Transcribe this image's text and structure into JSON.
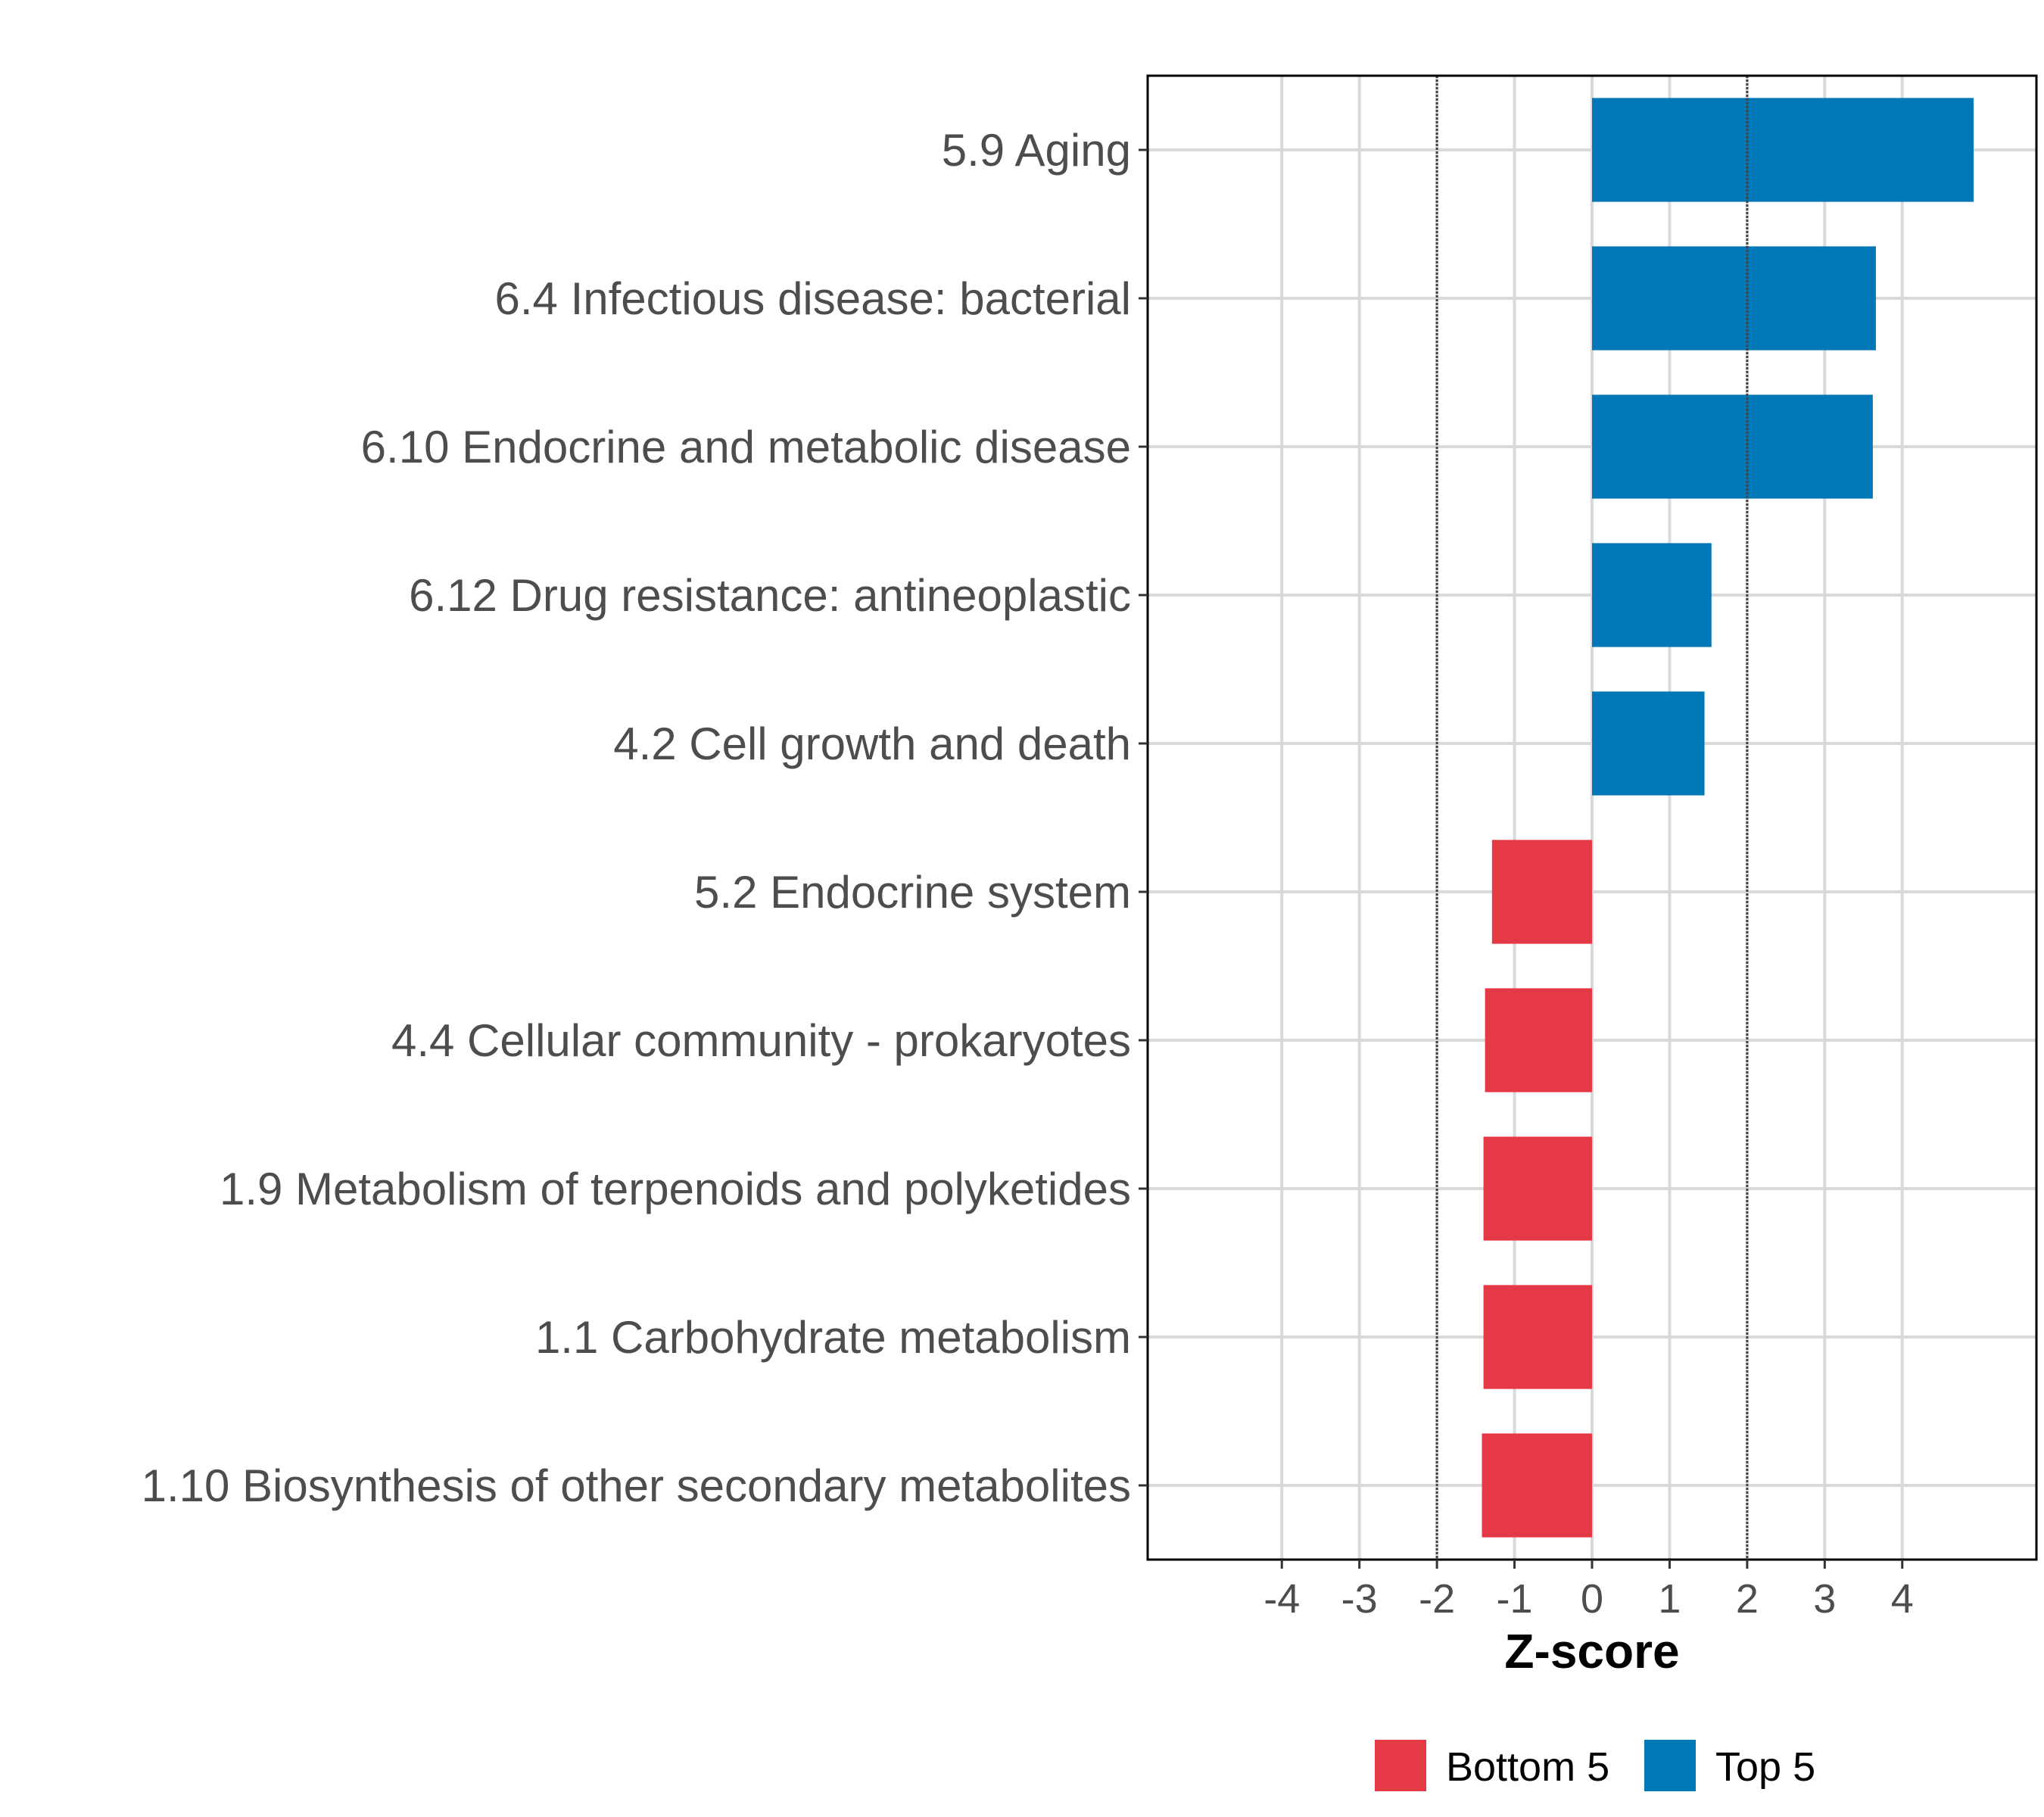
{
  "chart_data": {
    "type": "bar",
    "orientation": "horizontal",
    "xlabel": "Z-score",
    "ylabel": "",
    "xlim": [
      -5.73,
      5.73
    ],
    "xticks": [
      -4,
      -3,
      -2,
      -1,
      0,
      1,
      2,
      3,
      4
    ],
    "xtick_labels": [
      "-4",
      "-3",
      "-2",
      "-1",
      "0",
      "1",
      "2",
      "3",
      "4"
    ],
    "reference_lines": [
      -2,
      2
    ],
    "grid": true,
    "legend_position": "bottom",
    "legend": [
      {
        "name": "Bottom 5",
        "color": "#E63946"
      },
      {
        "name": "Top 5",
        "color": "#0077B6"
      }
    ],
    "categories": [
      "5.9 Aging",
      "6.4 Infectious disease: bacterial",
      "6.10 Endocrine and metabolic disease",
      "6.12 Drug resistance: antineoplastic",
      "4.2 Cell growth and death",
      "5.2 Endocrine system",
      "4.4 Cellular community - prokaryotes",
      "1.9 Metabolism of terpenoids and polyketides",
      "1.1 Carbohydrate metabolism",
      "1.10 Biosynthesis of other secondary metabolites"
    ],
    "values": [
      4.92,
      3.66,
      3.62,
      1.54,
      1.45,
      -1.29,
      -1.38,
      -1.4,
      -1.4,
      -1.42
    ],
    "groups": [
      "Top 5",
      "Top 5",
      "Top 5",
      "Top 5",
      "Top 5",
      "Bottom 5",
      "Bottom 5",
      "Bottom 5",
      "Bottom 5",
      "Bottom 5"
    ]
  }
}
